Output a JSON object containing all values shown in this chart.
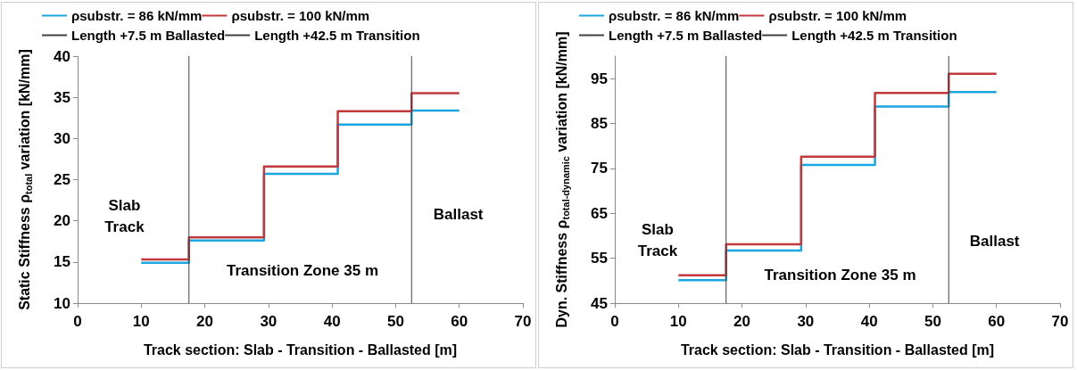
{
  "chart_data": [
    {
      "type": "step",
      "xlabel": "Track section: Slab - Transition - Ballasted [m]",
      "ylabel": "Static Stiffness ρ$_{total}$ variation [kN/mm]",
      "x": [
        10,
        17.5,
        29.3,
        40.9,
        52.5,
        60
      ],
      "series": [
        {
          "name": "ρsubstr. = 86 kN/mm",
          "color": "#1aa7e0",
          "values": [
            14.9,
            17.6,
            25.7,
            31.7,
            33.4,
            33.4
          ]
        },
        {
          "name": "ρsubstr. = 100 kN/mm",
          "color": "#c0393b",
          "values": [
            15.3,
            18.0,
            26.6,
            33.3,
            35.5,
            35.5
          ]
        }
      ],
      "ref_lines": [
        {
          "axis": "x",
          "value": 17.5,
          "label": "Length +7.5 m Ballasted",
          "color": "#404040"
        },
        {
          "axis": "x",
          "value": 52.5,
          "label": "Length +42.5 m Transition",
          "color": "#404040"
        }
      ],
      "annotations": [
        "Slab\nTrack",
        "Transition Zone 35 m",
        "Ballast"
      ],
      "xlim": [
        0,
        70
      ],
      "xticks": [
        0,
        10,
        20,
        30,
        40,
        50,
        60,
        70
      ],
      "ylim": [
        10,
        40
      ],
      "yticks": [
        10,
        15,
        20,
        25,
        30,
        35,
        40
      ],
      "grid": false,
      "legend": "top",
      "marker": "none",
      "line_style": "solid"
    },
    {
      "type": "step",
      "xlabel": "Track section: Slab - Transition - Ballasted [m]",
      "ylabel": "Dyn. Stiffness ρ$_{total-dynamic}$ variation [kN/mm]",
      "x": [
        10,
        17.5,
        29.3,
        40.9,
        52.5,
        60
      ],
      "series": [
        {
          "name": "ρsubstr. = 86 kN/mm",
          "color": "#1aa7e0",
          "values": [
            50.1,
            56.7,
            75.8,
            88.8,
            92.0,
            92.0
          ]
        },
        {
          "name": "ρsubstr. = 100 kN/mm",
          "color": "#c0393b",
          "values": [
            51.2,
            58.1,
            77.6,
            91.8,
            96.1,
            96.1
          ]
        }
      ],
      "ref_lines": [
        {
          "axis": "x",
          "value": 17.5,
          "label": "Length +7.5 m Ballasted",
          "color": "#404040"
        },
        {
          "axis": "x",
          "value": 52.5,
          "label": "Length +42.5 m Transition",
          "color": "#404040"
        }
      ],
      "annotations": [
        "Slab\nTrack",
        "Transition Zone 35 m",
        "Ballast"
      ],
      "xlim": [
        0,
        70
      ],
      "xticks": [
        0,
        10,
        20,
        30,
        40,
        50,
        60,
        70
      ],
      "ylim": [
        45,
        100
      ],
      "yticks": [
        45,
        55,
        65,
        75,
        85,
        95
      ],
      "grid": false,
      "legend": "top",
      "marker": "none",
      "line_style": "solid"
    }
  ]
}
